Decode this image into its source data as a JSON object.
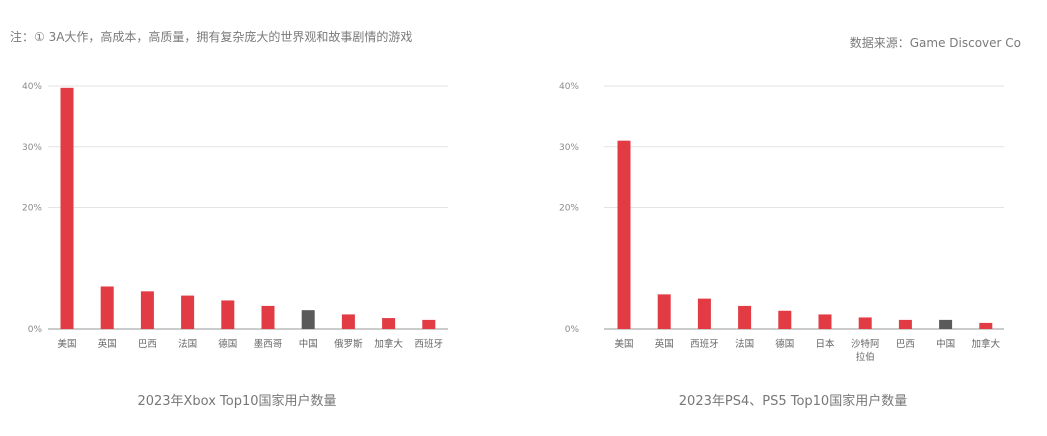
{
  "note": "注：① 3A大作，高成本，高质量，拥有复杂庞大的世界观和故事剧情的游戏",
  "source": "数据来源：Game Discover Co",
  "colors": {
    "main": "#e23b44",
    "highlight": "#5a5a5a",
    "grid": "#e3e3e3",
    "axis": "#9a9a9a"
  },
  "chart_data": [
    {
      "type": "bar",
      "title": "2023年Xbox Top10国家用户数量",
      "categories": [
        "美国",
        "英国",
        "巴西",
        "法国",
        "德国",
        "墨西哥",
        "中国",
        "俄罗斯",
        "加拿大",
        "西班牙"
      ],
      "values": [
        39.7,
        7.0,
        6.2,
        5.5,
        4.7,
        3.8,
        3.1,
        2.4,
        1.8,
        1.5
      ],
      "highlight_index": 6,
      "yticks": [
        "0%",
        "20%",
        "30%",
        "40%"
      ],
      "ylim": [
        0,
        40
      ],
      "grid": true
    },
    {
      "type": "bar",
      "title": "2023年PS4、PS5 Top10国家用户数量",
      "categories": [
        "美国",
        "英国",
        "西班牙",
        "法国",
        "德国",
        "日本",
        "沙特阿\n拉伯",
        "巴西",
        "中国",
        "加拿大"
      ],
      "values": [
        31.0,
        5.7,
        5.0,
        3.8,
        3.0,
        2.4,
        1.9,
        1.5,
        1.5,
        1.0
      ],
      "highlight_index": 8,
      "yticks": [
        "0%",
        "20%",
        "30%",
        "40%"
      ],
      "ylim": [
        0,
        40
      ],
      "grid": true
    }
  ]
}
